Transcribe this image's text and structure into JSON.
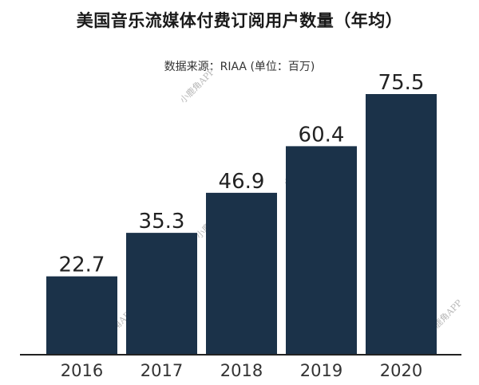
{
  "chart_data": {
    "type": "bar",
    "title": "美国音乐流媒体付费订阅用户数量（年均）",
    "subtitle": "数据来源：RIAA (单位：百万)",
    "categories": [
      "2016",
      "2017",
      "2018",
      "2019",
      "2020"
    ],
    "values": [
      22.7,
      35.3,
      46.9,
      60.4,
      75.5
    ],
    "value_labels": [
      "22.7",
      "35.3",
      "46.9",
      "60.4",
      "75.5"
    ],
    "ylim": [
      0,
      75.5
    ],
    "xlabel": "",
    "ylabel": "",
    "grid": false,
    "legend": "none",
    "colors": {
      "bar": "#1b3249",
      "axis": "#222222"
    }
  },
  "watermark": "小鹿角APP"
}
